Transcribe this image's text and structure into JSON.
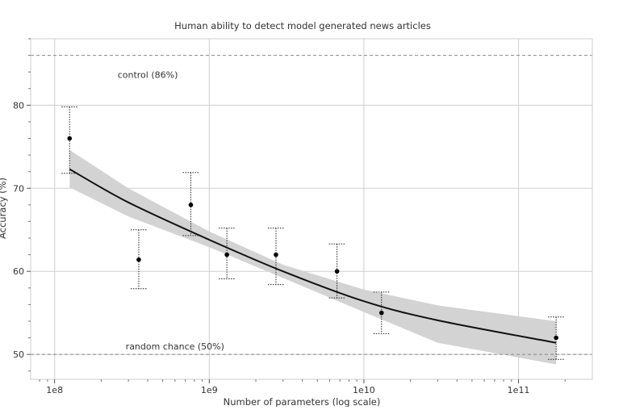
{
  "chart_data": {
    "type": "scatter",
    "title": "Human ability to detect model generated news articles",
    "xlabel": "Number of parameters (log scale)",
    "ylabel": "Accuracy (%)",
    "x_scale": "log",
    "xlim": [
      70000000,
      300000000000
    ],
    "ylim": [
      47,
      88
    ],
    "grid": true,
    "x_ticks": [
      {
        "value": 100000000,
        "label": "1e8"
      },
      {
        "value": 1000000000,
        "label": "1e9"
      },
      {
        "value": 10000000000,
        "label": "1e10"
      },
      {
        "value": 100000000000,
        "label": "1e11"
      }
    ],
    "y_ticks": [
      {
        "value": 50,
        "label": "50"
      },
      {
        "value": 60,
        "label": "60"
      },
      {
        "value": 70,
        "label": "70"
      },
      {
        "value": 80,
        "label": "80"
      }
    ],
    "reference_lines": [
      {
        "y": 86,
        "label": "control (86%)",
        "label_x": 400000000,
        "label_y": 83.7
      },
      {
        "y": 50,
        "label": "random chance (50%)",
        "label_x": 600000000,
        "label_y": 51.0
      }
    ],
    "points": [
      {
        "x": 125000000,
        "y": 76,
        "err_low": 71.8,
        "err_high": 79.8
      },
      {
        "x": 350000000,
        "y": 61.4,
        "err_low": 57.9,
        "err_high": 65.0
      },
      {
        "x": 760000000,
        "y": 68,
        "err_low": 64.3,
        "err_high": 71.9
      },
      {
        "x": 1300000000,
        "y": 62,
        "err_low": 59.1,
        "err_high": 65.2
      },
      {
        "x": 2700000000,
        "y": 62,
        "err_low": 58.4,
        "err_high": 65.2
      },
      {
        "x": 6700000000,
        "y": 60,
        "err_low": 56.8,
        "err_high": 63.3
      },
      {
        "x": 13000000000,
        "y": 55,
        "err_low": 52.5,
        "err_high": 57.5
      },
      {
        "x": 175000000000,
        "y": 52,
        "err_low": 49.4,
        "err_high": 54.5
      }
    ],
    "fit": {
      "x": [
        125000000,
        300000000,
        1000000000,
        3000000000,
        10000000000,
        30000000000,
        175000000000
      ],
      "y": [
        72.3,
        68.3,
        63.8,
        60.0,
        56.4,
        54.1,
        51.4
      ],
      "ci_low": [
        70.1,
        66.6,
        62.9,
        59.2,
        55.1,
        51.4,
        48.8
      ],
      "ci_high": [
        74.6,
        70.0,
        64.8,
        60.8,
        57.8,
        55.9,
        54.0
      ]
    }
  }
}
